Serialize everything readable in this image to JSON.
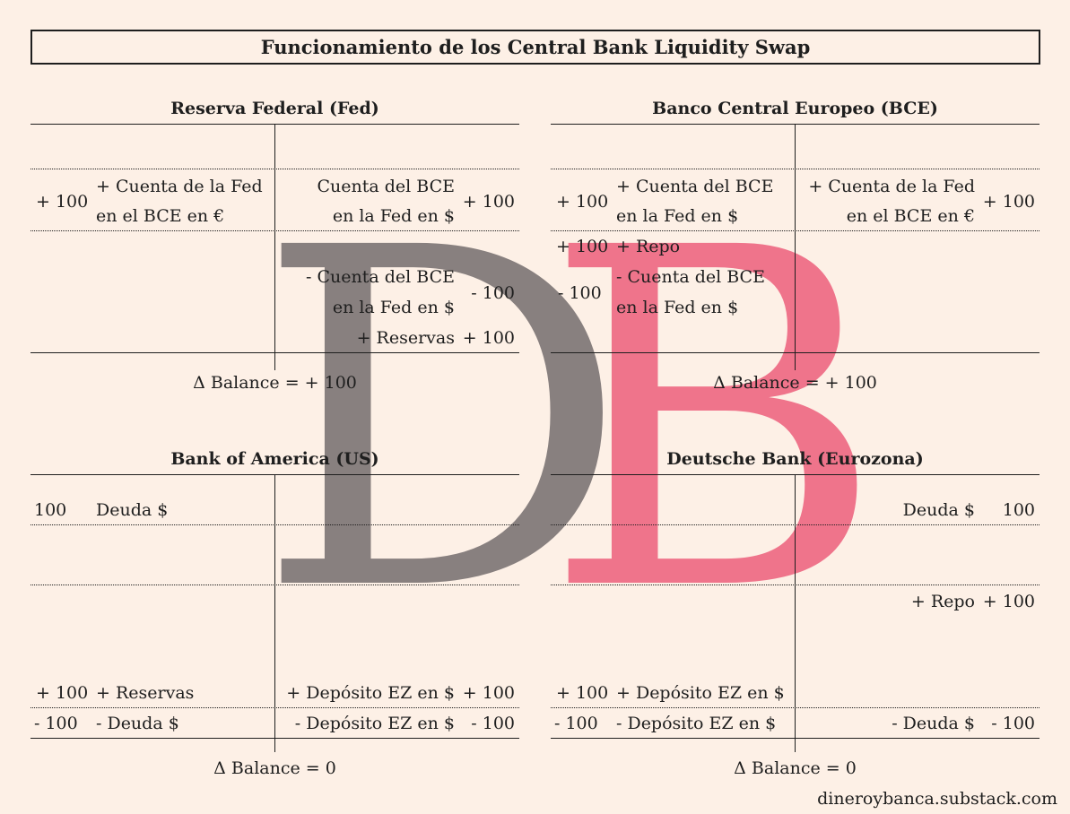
{
  "title": "Funcionamiento de los Central Bank Liquidity Swap",
  "logo": {
    "letter_left": "D",
    "letter_right": "B",
    "color_left": "#7c7474",
    "color_right": "#ee6a84"
  },
  "fed": {
    "title": "Reserva Federal (Fed)",
    "row1": {
      "amount_left": "+ 100",
      "asset_line1": "+ Cuenta de la Fed",
      "asset_line2": "en el BCE en €",
      "liab_line1": "Cuenta del BCE",
      "liab_line2": "en la Fed en $",
      "amount_right": "+ 100"
    },
    "row2": {
      "liab_line1": "- Cuenta del BCE",
      "liab_line2": "en la Fed en $",
      "amount_right": "- 100"
    },
    "row3": {
      "liab": "+ Reservas",
      "amount_right": "+ 100"
    },
    "balance": "Δ Balance = + 100"
  },
  "ecb": {
    "title": "Banco Central Europeo (BCE)",
    "row1": {
      "amount_left": "+ 100",
      "asset_line1": "+ Cuenta del BCE",
      "asset_line2": "en la Fed en $",
      "liab_line1": "+ Cuenta de la Fed",
      "liab_line2": "en el BCE en €",
      "amount_right": "+ 100"
    },
    "row2": {
      "amount_left": "+ 100",
      "asset": "+ Repo"
    },
    "row3": {
      "amount_left": "- 100",
      "asset_line1": "- Cuenta del BCE",
      "asset_line2": "en la Fed en $"
    },
    "balance": "Δ Balance = + 100"
  },
  "boa": {
    "title": "Bank of America (US)",
    "row1": {
      "amount_left": "100",
      "asset": "Deuda $"
    },
    "row2": {
      "amount_left": "+ 100",
      "asset": "+ Reservas",
      "liab": "+ Depósito EZ en $",
      "amount_right": "+ 100"
    },
    "row3": {
      "amount_left": "- 100",
      "asset": "- Deuda $",
      "liab": "- Depósito EZ en $",
      "amount_right": "- 100"
    },
    "balance": "Δ Balance = 0"
  },
  "db": {
    "title": "Deutsche Bank (Eurozona)",
    "row1": {
      "liab": "Deuda $",
      "amount_right": "100"
    },
    "row2": {
      "liab": "+ Repo",
      "amount_right": "+ 100"
    },
    "row3": {
      "amount_left": "+ 100",
      "asset": "+ Depósito EZ en $"
    },
    "row4": {
      "amount_left": "- 100",
      "asset": "- Depósito EZ en $",
      "liab": "- Deuda $",
      "amount_right": "- 100"
    },
    "balance": "Δ Balance = 0"
  },
  "footer": "dineroybanca.substack.com"
}
